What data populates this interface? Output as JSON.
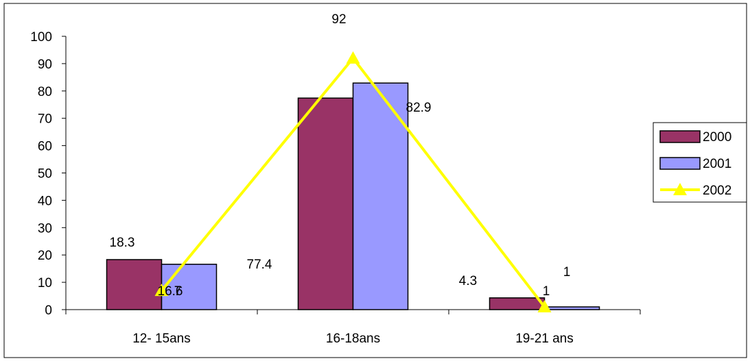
{
  "chart_data": {
    "type": "bar",
    "categories": [
      "12- 15ans",
      "16-18ans",
      "19-21 ans"
    ],
    "series": [
      {
        "name": "2000",
        "kind": "bar",
        "values": [
          18.3,
          77.4,
          4.3
        ],
        "color": "#993366",
        "labels": [
          "18.3",
          "77.4",
          "4.3"
        ]
      },
      {
        "name": "2001",
        "kind": "bar",
        "values": [
          16.6,
          82.9,
          1
        ],
        "color": "#9999FF",
        "labels": [
          "16.6",
          "82.9",
          "1"
        ]
      },
      {
        "name": "2002",
        "kind": "line",
        "marker": "triangle",
        "values": [
          7,
          92,
          1
        ],
        "color": "#FFFF00",
        "labels": [
          "7",
          "92",
          "1"
        ]
      }
    ],
    "ylim": [
      0,
      100
    ],
    "yticks": [
      "0",
      "10",
      "20",
      "30",
      "40",
      "50",
      "60",
      "70",
      "80",
      "90",
      "100"
    ],
    "title": "",
    "xlabel": "",
    "ylabel": "",
    "grid": false,
    "legend": "right"
  }
}
